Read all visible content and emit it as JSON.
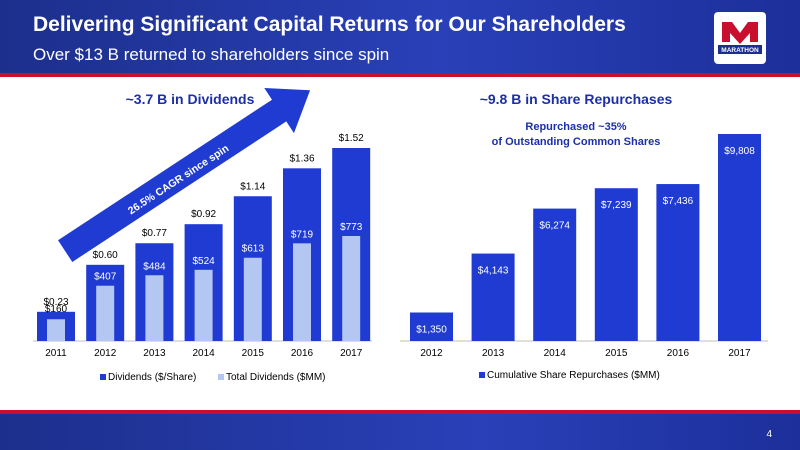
{
  "header": {
    "title": "Delivering Significant Capital Returns for Our Shareholders",
    "subtitle": "Over $13 B returned to shareholders since spin",
    "logo_text": "MARATHON"
  },
  "footer": {
    "page_number": "4"
  },
  "colors": {
    "dark_bar": "#1f3bd1",
    "light_bar": "#b4c6f2",
    "header_blue": "#1c2f8c",
    "accent_red": "#c8102e"
  },
  "chart_data": [
    {
      "type": "bar",
      "title": "~3.7 B in Dividends",
      "categories": [
        "2011",
        "2012",
        "2013",
        "2014",
        "2015",
        "2016",
        "2017"
      ],
      "series": [
        {
          "name": "Dividends ($/Share)",
          "values": [
            0.23,
            0.6,
            0.77,
            0.92,
            1.14,
            1.36,
            1.52
          ],
          "labels": [
            "$0.23",
            "$0.60",
            "$0.77",
            "$0.92",
            "$1.14",
            "$1.36",
            "$1.52"
          ]
        },
        {
          "name": "Total Dividends ($MM)",
          "values": [
            160,
            407,
            484,
            524,
            613,
            719,
            773
          ],
          "labels": [
            "$160",
            "$407",
            "$484",
            "$524",
            "$613",
            "$719",
            "$773"
          ]
        }
      ],
      "annotation": "26.5% CAGR since spin",
      "legend": "bottom"
    },
    {
      "type": "bar",
      "title": "~9.8 B in Share Repurchases",
      "subtitle_lines": [
        "Repurchased ~35%",
        "of Outstanding Common Shares"
      ],
      "categories": [
        "2012",
        "2013",
        "2014",
        "2015",
        "2016",
        "2017"
      ],
      "series": [
        {
          "name": "Cumulative Share Repurchases ($MM)",
          "values": [
            1350,
            4143,
            6274,
            7239,
            7436,
            9808
          ],
          "labels": [
            "$1,350",
            "$4,143",
            "$6,274",
            "$7,239",
            "$7,436",
            "$9,808"
          ]
        }
      ],
      "legend": "bottom"
    }
  ]
}
